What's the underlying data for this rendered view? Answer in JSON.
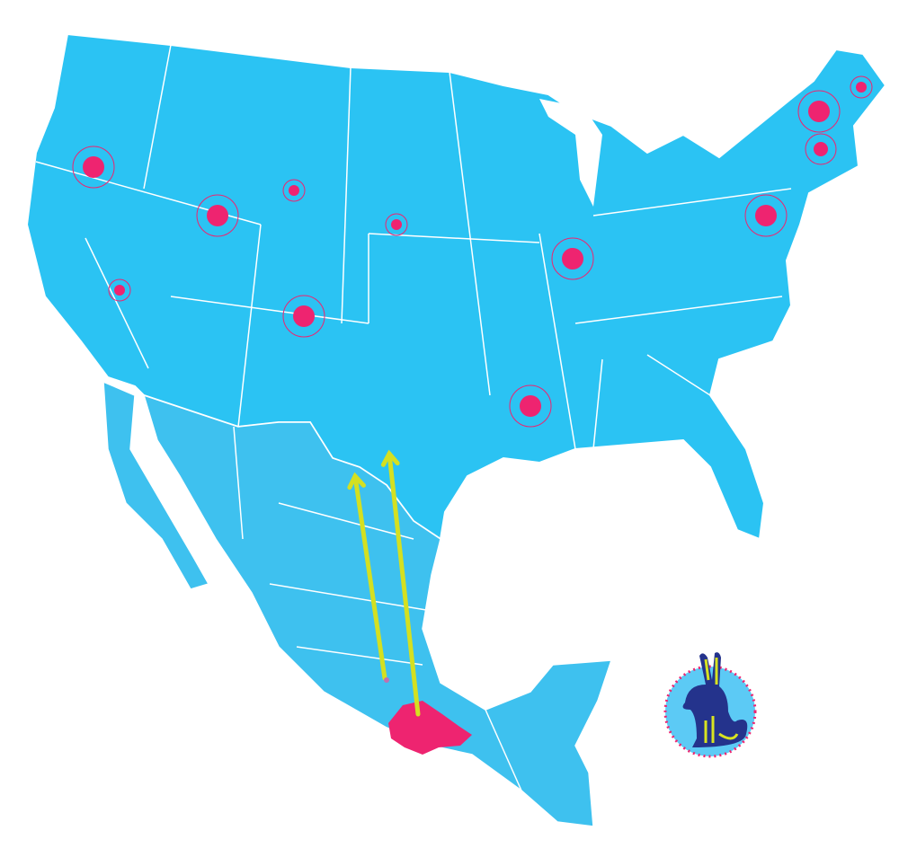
{
  "map": {
    "colors": {
      "usa": "#2bc3f3",
      "mexico": "#3ec1ef",
      "borders": "#ffffff",
      "highlight_region": "#ee2470",
      "markers": "#ee2470",
      "arrows": "#d4e021",
      "logo_background": "#5ccaf5",
      "logo_rabbit": "#24338c",
      "logo_accent": "#d8e321"
    },
    "marker_sizes": [
      "small",
      "medium",
      "large"
    ],
    "highlighted_region": "Oaxaca",
    "arrow_count": 2,
    "logo": "rabbit-emblem"
  }
}
